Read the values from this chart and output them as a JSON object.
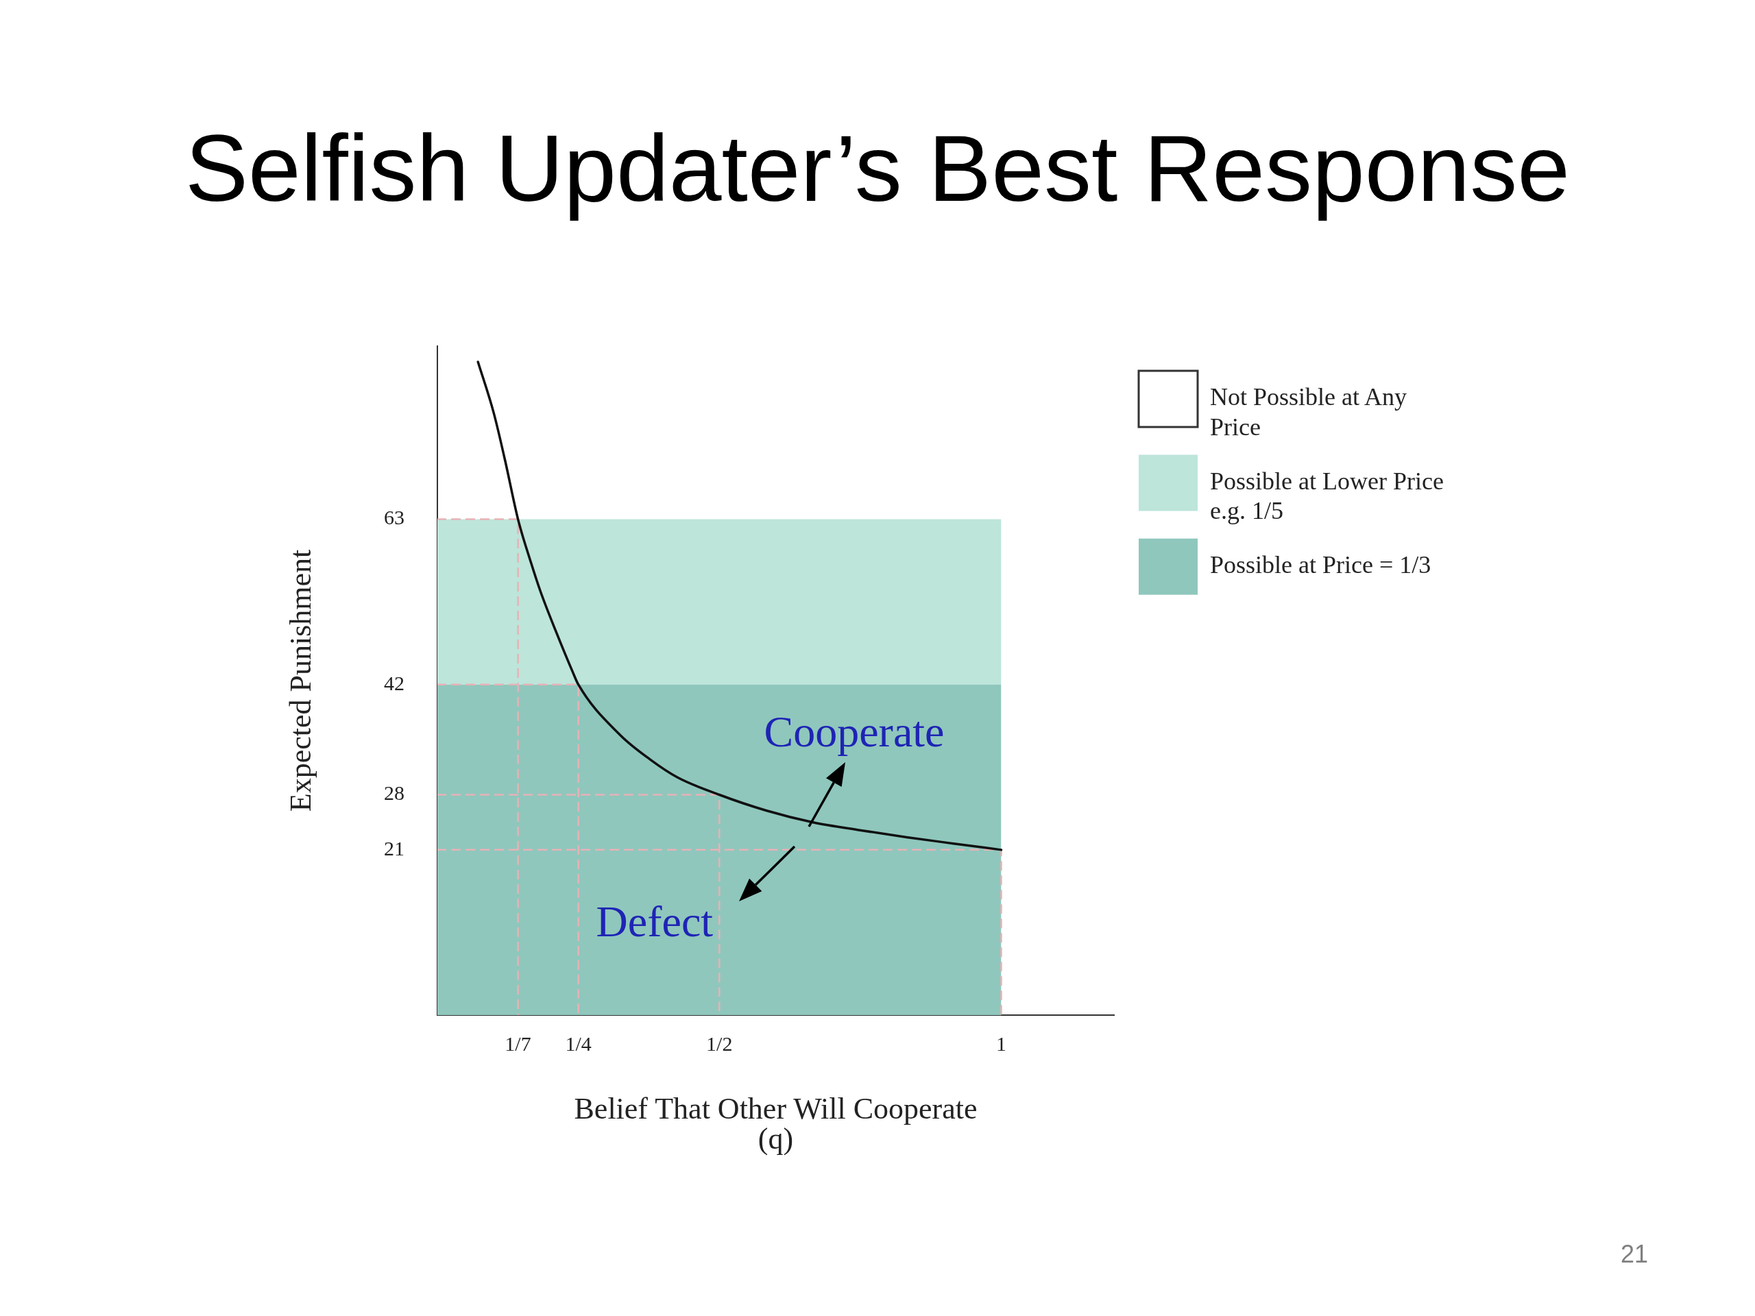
{
  "chart_data": {
    "type": "area",
    "title": "Selfish Updater’s Best Response",
    "xlabel": "Belief That Other Will Cooperate\n(q)",
    "ylabel": "Expected Punishment",
    "stacked": true,
    "series": [
      {
        "name": "Possible at Price = 1/3",
        "color": "#8fc7bd",
        "x": [
          0,
          1
        ],
        "values": [
          42,
          42
        ]
      },
      {
        "name": "Possible at Lower Price e.g. 1/5",
        "color": "#bde5da",
        "x": [
          0,
          1
        ],
        "values": [
          21,
          21
        ]
      },
      {
        "name": "Not Possible at Any Price",
        "color": "#ffffff"
      },
      {
        "type": "line",
        "color": "#111111",
        "x": [
          0.072,
          0.1,
          0.12,
          0.143,
          0.166,
          0.183,
          0.21,
          0.24,
          0.25,
          0.324,
          0.377,
          0.426,
          0.5,
          0.583,
          0.666,
          0.749,
          0.832,
          0.915,
          1
        ],
        "values": [
          83,
          76.5,
          70.5,
          63,
          57.5,
          53.8,
          48.8,
          43.6,
          42,
          35.6,
          32.5,
          30.2,
          28,
          26,
          24.5,
          23.5,
          22.6,
          21.8,
          21
        ]
      },
      {
        "type": "line",
        "color": "#e7b2b6",
        "line_style": "dashed",
        "x": [
          0,
          0.143,
          0.143
        ],
        "values": [
          63,
          63,
          0
        ]
      },
      {
        "type": "line",
        "color": "#e7b2b6",
        "line_style": "dashed",
        "x": [
          0,
          0.25,
          0.25
        ],
        "values": [
          42,
          42,
          0
        ]
      },
      {
        "type": "line",
        "color": "#e7b2b6",
        "line_style": "dashed",
        "x": [
          0,
          0.5,
          0.5
        ],
        "values": [
          28,
          28,
          0
        ]
      },
      {
        "type": "line",
        "color": "#e7b2b6",
        "line_style": "dashed",
        "x": [
          0,
          1,
          1
        ],
        "values": [
          21,
          21,
          0
        ]
      }
    ],
    "xlim": [
      0,
      1.2
    ],
    "xticks": [
      {
        "value": 0.142857,
        "label": "1/7"
      },
      {
        "value": 0.25,
        "label": "1/4"
      },
      {
        "value": 0.5,
        "label": "1/2"
      },
      1
    ],
    "ylim": [
      0,
      85
    ],
    "yticks": [
      21,
      28,
      42,
      63
    ],
    "legend": "top right",
    "marker": "none",
    "line_style": "solid",
    "annotations": [
      "Cooperate",
      "Defect",
      "21"
    ]
  }
}
